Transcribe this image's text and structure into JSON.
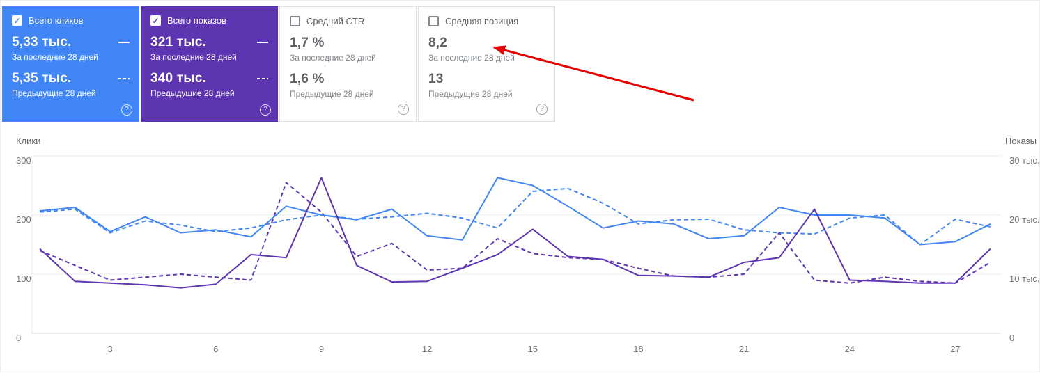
{
  "cards": [
    {
      "label": "Всего кликов",
      "checked": true,
      "bg": "#4285f4",
      "checkbox_glyph": "✓",
      "current_value": "5,33 тыс.",
      "current_caption": "За последние 28 дней",
      "previous_value": "5,35 тыс.",
      "previous_caption": "Предыдущие 28 дней",
      "help_icon": "?"
    },
    {
      "label": "Всего показов",
      "checked": true,
      "bg": "#5e35b1",
      "checkbox_glyph": "✓",
      "current_value": "321 тыс.",
      "current_caption": "За последние 28 дней",
      "previous_value": "340 тыс.",
      "previous_caption": "Предыдущие 28 дней",
      "help_icon": "?"
    },
    {
      "label": "Средний CTR",
      "checked": false,
      "bg": "#ffffff",
      "current_value": "1,7 %",
      "current_caption": "За последние 28 дней",
      "previous_value": "1,6 %",
      "previous_caption": "Предыдущие 28 дней",
      "help_icon": "?"
    },
    {
      "label": "Средняя позиция",
      "checked": false,
      "bg": "#ffffff",
      "current_value": "8,2",
      "current_caption": "За последние 28 дней",
      "previous_value": "13",
      "previous_caption": "Предыдущие 28 дней",
      "help_icon": "?"
    }
  ],
  "annotation_arrow": {
    "color": "#e60000",
    "from": [
      995,
      143
    ],
    "to": [
      708,
      67
    ],
    "points_to": "Средняя позиция — 8,2"
  },
  "chart_data": {
    "type": "line",
    "x": [
      1,
      2,
      3,
      4,
      5,
      6,
      7,
      8,
      9,
      10,
      11,
      12,
      13,
      14,
      15,
      16,
      17,
      18,
      19,
      20,
      21,
      22,
      23,
      24,
      25,
      26,
      27,
      28
    ],
    "x_ticks": [
      3,
      6,
      9,
      12,
      15,
      18,
      21,
      24,
      27
    ],
    "left_axis": {
      "label": "Клики",
      "ticks": [
        "0",
        "100",
        "200",
        "300"
      ],
      "range": [
        0,
        300
      ]
    },
    "right_axis": {
      "label": "Показы",
      "ticks": [
        "0",
        "10 тыс.",
        "20 тыс.",
        "30 тыс."
      ],
      "range": [
        0,
        30
      ]
    },
    "grid": true,
    "series": [
      {
        "name": "Клики — за последние 28 дней",
        "style": "solid",
        "color": "#4285f4",
        "axis": "left",
        "values": [
          207,
          213,
          172,
          197,
          170,
          175,
          163,
          215,
          200,
          192,
          210,
          165,
          158,
          263,
          250,
          215,
          178,
          190,
          185,
          160,
          165,
          213,
          200,
          200,
          195,
          150,
          155,
          185
        ]
      },
      {
        "name": "Клики — предыдущие 28 дней",
        "style": "dashed",
        "color": "#4285f4",
        "axis": "left",
        "values": [
          205,
          210,
          170,
          190,
          183,
          172,
          178,
          192,
          200,
          193,
          197,
          203,
          195,
          178,
          240,
          245,
          220,
          185,
          192,
          193,
          175,
          170,
          168,
          195,
          200,
          150,
          193,
          180
        ]
      },
      {
        "name": "Показы (тыс.) — за последние 28 дней",
        "style": "solid",
        "color": "#5e35b1",
        "axis": "right",
        "values": [
          14.3,
          8.8,
          8.5,
          8.2,
          7.7,
          8.3,
          13.3,
          12.8,
          26.3,
          11.5,
          8.7,
          8.8,
          11.0,
          13.3,
          17.6,
          13.0,
          12.5,
          9.8,
          9.7,
          9.5,
          12.0,
          12.8,
          21.0,
          9.0,
          8.8,
          8.5,
          8.5,
          14.3
        ]
      },
      {
        "name": "Показы (тыс.) — предыдущие 28 дней",
        "style": "dashed",
        "color": "#5e35b1",
        "axis": "right",
        "values": [
          14.0,
          11.5,
          9.0,
          9.5,
          10.0,
          9.5,
          9.0,
          25.5,
          20.5,
          13.0,
          15.2,
          10.7,
          11.0,
          16.0,
          13.5,
          12.8,
          12.5,
          11.0,
          9.7,
          9.5,
          10.0,
          17.0,
          9.0,
          8.5,
          9.5,
          8.8,
          8.5,
          12.0
        ]
      }
    ]
  }
}
